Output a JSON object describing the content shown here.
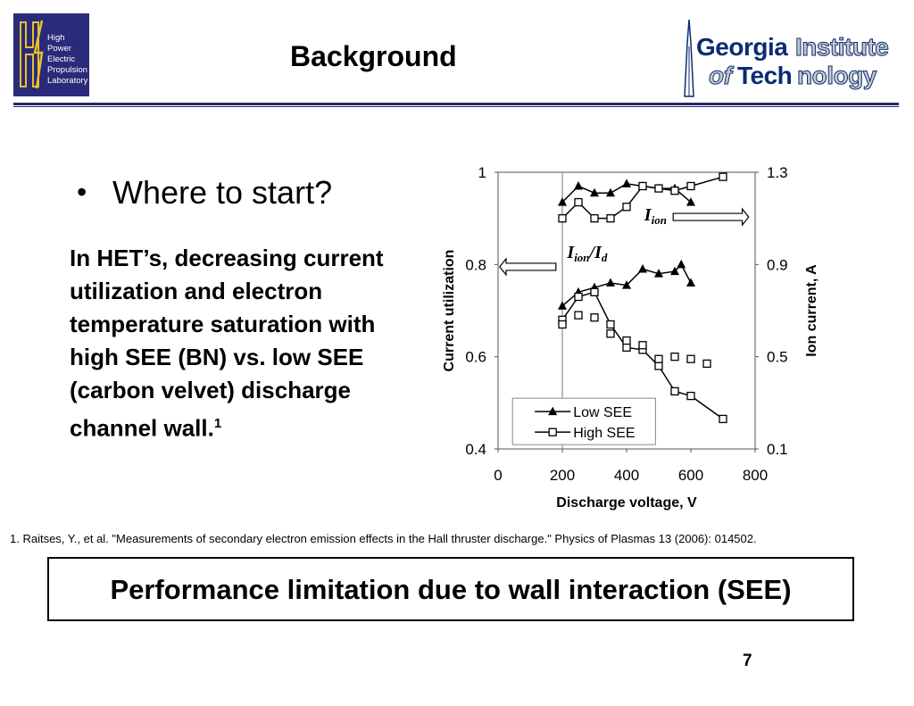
{
  "header": {
    "lab_logo_lines": [
      "High",
      "Power",
      "Electric",
      "Propulsion",
      "Laboratory"
    ],
    "title": "Background",
    "institution_logo": {
      "line1_part1": "Georgia",
      "line1_part2": "Institute",
      "line2_part1": "of",
      "line2_part2": "Tech",
      "line2_part3": "nology"
    }
  },
  "bullet": {
    "text": "Where to start?"
  },
  "paragraph": {
    "text": "In HET’s, decreasing current utilization and electron temperature saturation with high SEE (BN) vs. low SEE (carbon velvet) discharge channel wall.",
    "footnote_marker": "1"
  },
  "reference": "1. Raitses, Y., et al. \"Measurements of secondary electron emission effects in the Hall thruster discharge.\" Physics of Plasmas 13 (2006): 014502.",
  "callout": "Performance limitation due to wall interaction (SEE)",
  "page_number": "7",
  "chart_data": {
    "type": "line",
    "xlabel": "Discharge voltage, V",
    "ylabel": "Current utilization",
    "y2label": "Ion current, A",
    "xlim": [
      0,
      800
    ],
    "xticks": [
      "0",
      "200",
      "400",
      "600",
      "800"
    ],
    "ylim": [
      0.4,
      1.0
    ],
    "yticks": [
      "0.4",
      "0.6",
      "0.8",
      "1"
    ],
    "y2lim": [
      0.1,
      1.3
    ],
    "y2ticks": [
      "0.1",
      "0.5",
      "0.9",
      "1.3"
    ],
    "annotations": {
      "ion_current": {
        "base": "I",
        "sub": "ion"
      },
      "utilization": {
        "base1": "I",
        "sub1": "ion",
        "sep": "/",
        "base2": "I",
        "sub2": "d"
      }
    },
    "series": [
      {
        "name": "Low SEE",
        "axis": "right",
        "marker": "filled-triangle",
        "x": [
          200,
          250,
          300,
          350,
          400,
          450,
          500,
          550,
          600
        ],
        "y": [
          1.17,
          1.24,
          1.21,
          1.21,
          1.25,
          1.24,
          1.23,
          1.23,
          1.17
        ]
      },
      {
        "name": "High SEE",
        "axis": "right",
        "marker": "open-square",
        "x": [
          200,
          250,
          300,
          350,
          400,
          450,
          500,
          550,
          600,
          700
        ],
        "y": [
          1.1,
          1.17,
          1.1,
          1.1,
          1.15,
          1.24,
          1.23,
          1.22,
          1.24,
          1.28
        ]
      },
      {
        "name": "Low SEE",
        "axis": "left",
        "marker": "filled-triangle",
        "x": [
          200,
          250,
          300,
          350,
          400,
          450,
          500,
          550,
          570,
          600
        ],
        "y": [
          0.71,
          0.74,
          0.75,
          0.76,
          0.755,
          0.79,
          0.78,
          0.785,
          0.8,
          0.76
        ]
      },
      {
        "name": "High SEE",
        "axis": "left",
        "marker": "open-square",
        "x": [
          200,
          250,
          300,
          350,
          400,
          450,
          500,
          550,
          600,
          700
        ],
        "y": [
          0.68,
          0.73,
          0.74,
          0.67,
          0.62,
          0.615,
          0.58,
          0.525,
          0.515,
          0.465
        ]
      },
      {
        "name": "High SEE",
        "axis": "left",
        "marker": "open-square",
        "connected": false,
        "x": [
          200,
          250,
          300,
          350,
          400,
          450,
          500,
          550,
          600,
          650
        ],
        "y": [
          0.67,
          0.69,
          0.685,
          0.65,
          0.635,
          0.625,
          0.595,
          0.6,
          0.595,
          0.585
        ]
      }
    ],
    "legend": {
      "position": "bottom-center",
      "entries": [
        "Low SEE",
        "High SEE"
      ]
    }
  }
}
